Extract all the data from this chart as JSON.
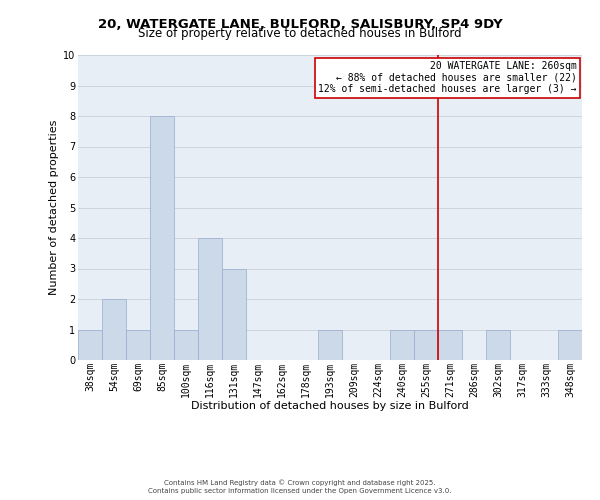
{
  "title": "20, WATERGATE LANE, BULFORD, SALISBURY, SP4 9DY",
  "subtitle": "Size of property relative to detached houses in Bulford",
  "xlabel": "Distribution of detached houses by size in Bulford",
  "ylabel": "Number of detached properties",
  "bar_labels": [
    "38sqm",
    "54sqm",
    "69sqm",
    "85sqm",
    "100sqm",
    "116sqm",
    "131sqm",
    "147sqm",
    "162sqm",
    "178sqm",
    "193sqm",
    "209sqm",
    "224sqm",
    "240sqm",
    "255sqm",
    "271sqm",
    "286sqm",
    "302sqm",
    "317sqm",
    "333sqm",
    "348sqm"
  ],
  "bar_values": [
    1,
    2,
    1,
    8,
    1,
    4,
    3,
    0,
    0,
    0,
    1,
    0,
    0,
    1,
    1,
    1,
    0,
    1,
    0,
    0,
    1
  ],
  "bar_color": "#ccd9e8",
  "bar_edgecolor": "#99aacc",
  "vline_x": 14.5,
  "vline_color": "#cc0000",
  "annotation_text": "20 WATERGATE LANE: 260sqm\n← 88% of detached houses are smaller (22)\n12% of semi-detached houses are larger (3) →",
  "annotation_box_edgecolor": "#cc0000",
  "annotation_box_facecolor": "#ffffff",
  "ylim": [
    0,
    10
  ],
  "yticks": [
    0,
    1,
    2,
    3,
    4,
    5,
    6,
    7,
    8,
    9,
    10
  ],
  "grid_color": "#c8d0dc",
  "background_color": "#e8eef5",
  "title_fontsize": 9.5,
  "subtitle_fontsize": 8.5,
  "axis_label_fontsize": 8,
  "tick_fontsize": 7,
  "annotation_fontsize": 7,
  "footer1": "Contains HM Land Registry data © Crown copyright and database right 2025.",
  "footer2": "Contains public sector information licensed under the Open Government Licence v3.0."
}
